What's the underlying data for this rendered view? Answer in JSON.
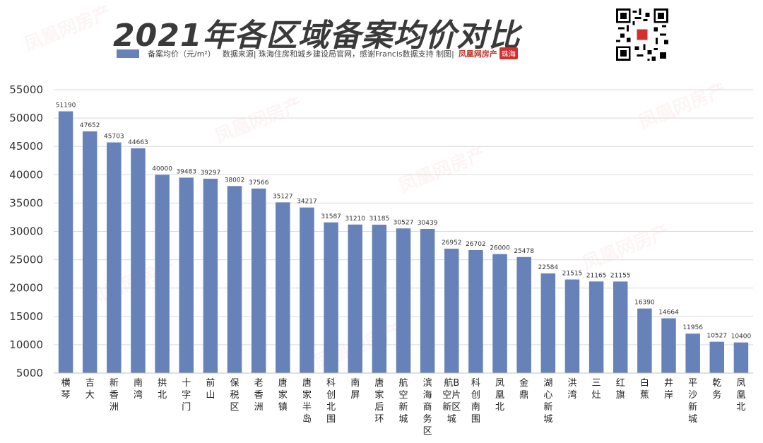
{
  "header": {
    "title": "2021年各区域备案均价对比",
    "legend_label": "备案均价（元/m²）",
    "source_text": "数据来源| 珠海住房和城乡建设局官网，感谢Francis数据支持  制图|",
    "logo_text": "凤凰网房产",
    "badge_text": "珠海"
  },
  "colors": {
    "bar": "#6682b9",
    "title": "#3a3a3a",
    "badge": "#d32f2f"
  },
  "chart_data": {
    "type": "bar",
    "title": "2021年各区域备案均价对比",
    "xlabel": "",
    "ylabel": "",
    "ylim": [
      5000,
      55000
    ],
    "yticks": [
      5000,
      10000,
      15000,
      20000,
      25000,
      30000,
      35000,
      40000,
      45000,
      50000,
      55000
    ],
    "grid": true,
    "legend_position": "top-left",
    "categories": [
      "横琴",
      "吉大",
      "新香洲",
      "南湾",
      "拱北",
      "十字门",
      "前山",
      "保税区",
      "老香洲",
      "唐家镇",
      "唐家半岛",
      "科创北围",
      "南屏",
      "唐家后环",
      "航空新城",
      "滨海商务区",
      "航空新城B片区",
      "科创南围",
      "凤凰北",
      "金鼎",
      "湖心新城",
      "洪湾",
      "三灶",
      "红旗",
      "白蕉",
      "井岸",
      "平沙新城",
      "乾务",
      "凤凰北"
    ],
    "category_lines": [
      [
        "横",
        "琴"
      ],
      [
        "吉",
        "大"
      ],
      [
        "新",
        "香",
        "洲"
      ],
      [
        "南",
        "湾"
      ],
      [
        "拱",
        "北"
      ],
      [
        "十",
        "字",
        "门"
      ],
      [
        "前",
        "山"
      ],
      [
        "保",
        "税",
        "区"
      ],
      [
        "老",
        "香",
        "洲"
      ],
      [
        "唐",
        "家",
        "镇"
      ],
      [
        "唐",
        "家",
        "半",
        "岛"
      ],
      [
        "科",
        "创",
        "北",
        "围"
      ],
      [
        "南",
        "屏"
      ],
      [
        "唐",
        "家",
        "后",
        "环"
      ],
      [
        "航",
        "空",
        "新",
        "城"
      ],
      [
        "滨",
        "海",
        "商",
        "务",
        "区"
      ],
      [
        "航B",
        "空片",
        "新区",
        "城"
      ],
      [
        "科",
        "创",
        "南",
        "围"
      ],
      [
        "凤",
        "凰",
        "北"
      ],
      [
        "金",
        "鼎"
      ],
      [
        "湖",
        "心",
        "新",
        "城"
      ],
      [
        "洪",
        "湾"
      ],
      [
        "三",
        "灶"
      ],
      [
        "红",
        "旗"
      ],
      [
        "白",
        "蕉"
      ],
      [
        "井",
        "岸"
      ],
      [
        "平",
        "沙",
        "新",
        "城"
      ],
      [
        "乾",
        "务"
      ],
      [
        "凤",
        "凰",
        "北"
      ]
    ],
    "series": [
      {
        "name": "备案均价（元/m²）",
        "values": [
          51190,
          47652,
          45703,
          44663,
          40000,
          39483,
          39297,
          38002,
          37566,
          35127,
          34217,
          31587,
          31210,
          31185,
          30527,
          30439,
          26952,
          26702,
          26000,
          25478,
          22584,
          21515,
          21165,
          21155,
          16390,
          14664,
          11956,
          10527,
          10400
        ]
      }
    ]
  }
}
